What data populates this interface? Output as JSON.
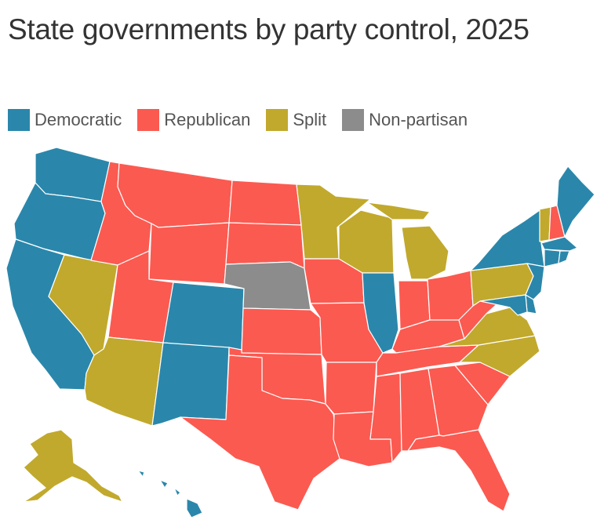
{
  "title": "State governments by party control, 2025",
  "colors": {
    "democratic": "#2a87ab",
    "republican": "#fb5a51",
    "split": "#c1a92d",
    "nonpartisan": "#8c8c8c"
  },
  "legend": [
    {
      "key": "democratic",
      "label": "Democratic"
    },
    {
      "key": "republican",
      "label": "Republican"
    },
    {
      "key": "split",
      "label": "Split"
    },
    {
      "key": "nonpartisan",
      "label": "Non-partisan"
    }
  ],
  "states": [
    {
      "name": "Washington",
      "party": "democratic"
    },
    {
      "name": "Oregon",
      "party": "democratic"
    },
    {
      "name": "California",
      "party": "democratic"
    },
    {
      "name": "Nevada",
      "party": "split"
    },
    {
      "name": "Idaho",
      "party": "republican"
    },
    {
      "name": "Montana",
      "party": "republican"
    },
    {
      "name": "Wyoming",
      "party": "republican"
    },
    {
      "name": "Utah",
      "party": "republican"
    },
    {
      "name": "Arizona",
      "party": "split"
    },
    {
      "name": "Colorado",
      "party": "democratic"
    },
    {
      "name": "New Mexico",
      "party": "democratic"
    },
    {
      "name": "North Dakota",
      "party": "republican"
    },
    {
      "name": "South Dakota",
      "party": "republican"
    },
    {
      "name": "Nebraska",
      "party": "nonpartisan"
    },
    {
      "name": "Kansas",
      "party": "republican"
    },
    {
      "name": "Oklahoma",
      "party": "republican"
    },
    {
      "name": "Texas",
      "party": "republican"
    },
    {
      "name": "Minnesota",
      "party": "split"
    },
    {
      "name": "Iowa",
      "party": "republican"
    },
    {
      "name": "Missouri",
      "party": "republican"
    },
    {
      "name": "Arkansas",
      "party": "republican"
    },
    {
      "name": "Louisiana",
      "party": "republican"
    },
    {
      "name": "Wisconsin",
      "party": "split"
    },
    {
      "name": "Illinois",
      "party": "democratic"
    },
    {
      "name": "Michigan",
      "party": "split"
    },
    {
      "name": "Indiana",
      "party": "republican"
    },
    {
      "name": "Ohio",
      "party": "republican"
    },
    {
      "name": "Kentucky",
      "party": "republican"
    },
    {
      "name": "Tennessee",
      "party": "republican"
    },
    {
      "name": "Mississippi",
      "party": "republican"
    },
    {
      "name": "Alabama",
      "party": "republican"
    },
    {
      "name": "Georgia",
      "party": "republican"
    },
    {
      "name": "Florida",
      "party": "republican"
    },
    {
      "name": "South Carolina",
      "party": "republican"
    },
    {
      "name": "North Carolina",
      "party": "split"
    },
    {
      "name": "Virginia",
      "party": "split"
    },
    {
      "name": "West Virginia",
      "party": "republican"
    },
    {
      "name": "Pennsylvania",
      "party": "split"
    },
    {
      "name": "New York",
      "party": "democratic"
    },
    {
      "name": "New Jersey",
      "party": "democratic"
    },
    {
      "name": "Delaware",
      "party": "democratic"
    },
    {
      "name": "Maryland",
      "party": "democratic"
    },
    {
      "name": "Vermont",
      "party": "split"
    },
    {
      "name": "New Hampshire",
      "party": "republican"
    },
    {
      "name": "Maine",
      "party": "democratic"
    },
    {
      "name": "Massachusetts",
      "party": "democratic"
    },
    {
      "name": "Connecticut",
      "party": "democratic"
    },
    {
      "name": "Rhode Island",
      "party": "democratic"
    },
    {
      "name": "Alaska",
      "party": "split"
    },
    {
      "name": "Hawaii",
      "party": "democratic"
    }
  ]
}
